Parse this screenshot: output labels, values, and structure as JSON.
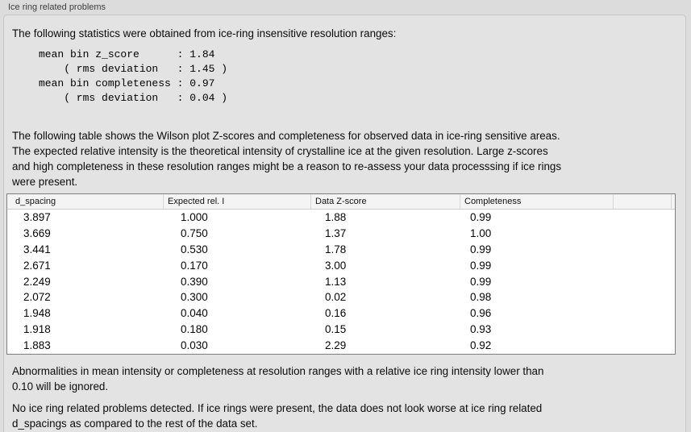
{
  "panel": {
    "title": "Ice ring related problems"
  },
  "sections": {
    "intro": "The following statistics were obtained from ice-ring insensitive resolution ranges:",
    "stats_block": "mean bin z_score      : 1.84\n    ( rms deviation   : 1.45 )\nmean bin completeness : 0.97\n    ( rms deviation   : 0.04 )",
    "table_intro": "The following table shows the Wilson plot Z-scores and completeness for observed data in ice-ring sensitive areas.\nThe expected relative intensity is the theoretical intensity of crystalline ice at the given resolution. Large z-scores\nand high completeness in these resolution ranges might be a reason to re-assess your data processsing if ice rings\nwere present.",
    "ignore_note": "Abnormalities in mean intensity or completeness at resolution ranges with a relative ice ring intensity lower than\n0.10 will be ignored.",
    "conclusion": "No ice ring related problems detected. If ice rings were present, the data does not look worse at ice ring related\nd_spacings as compared to the rest of the data set."
  },
  "table": {
    "columns": [
      "d_spacing",
      "Expected rel. I",
      "Data Z-score",
      "Completeness"
    ],
    "rows": [
      [
        "3.897",
        "1.000",
        "1.88",
        "0.99"
      ],
      [
        "3.669",
        "0.750",
        "1.37",
        "1.00"
      ],
      [
        "3.441",
        "0.530",
        "1.78",
        "0.99"
      ],
      [
        "2.671",
        "0.170",
        "3.00",
        "0.99"
      ],
      [
        "2.249",
        "0.390",
        "1.13",
        "0.99"
      ],
      [
        "2.072",
        "0.300",
        "0.02",
        "0.98"
      ],
      [
        "1.948",
        "0.040",
        "0.16",
        "0.96"
      ],
      [
        "1.918",
        "0.180",
        "0.15",
        "0.93"
      ],
      [
        "1.883",
        "0.030",
        "2.29",
        "0.92"
      ]
    ]
  },
  "colors": {
    "page_bg": "#dcdcdc",
    "box_bg": "#e3e3e3",
    "box_border": "#c6c6c6",
    "table_border": "#7f7f7f",
    "table_header_bg": "#f4f4f4"
  }
}
